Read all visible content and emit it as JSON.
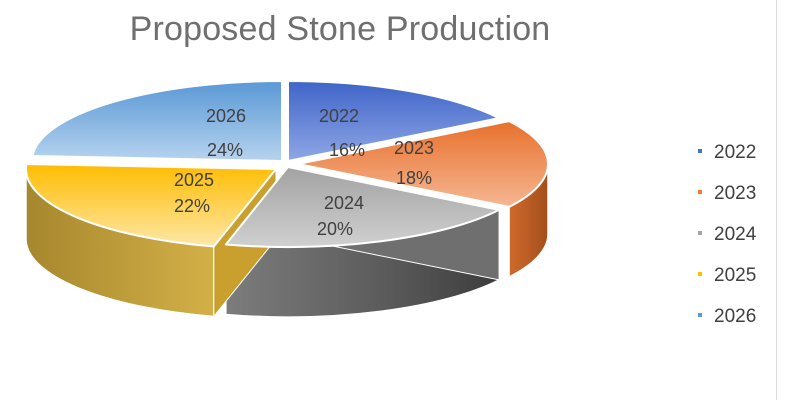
{
  "chart_data": {
    "type": "pie",
    "title": "Proposed Stone Production",
    "style": "3d-exploded-perspective",
    "categories": [
      "2022",
      "2023",
      "2024",
      "2025",
      "2026"
    ],
    "values": [
      16,
      18,
      20,
      22,
      24
    ],
    "value_labels": [
      "16%",
      "18%",
      "20%",
      "22%",
      "24%"
    ],
    "colors": [
      "#4472c4",
      "#ed7d31",
      "#a5a5a5",
      "#ffc000",
      "#5b9bd5"
    ],
    "legend": {
      "position": "right",
      "entries": [
        "2022",
        "2023",
        "2024",
        "2025",
        "2026"
      ]
    },
    "data_labels": "category-and-percent"
  }
}
